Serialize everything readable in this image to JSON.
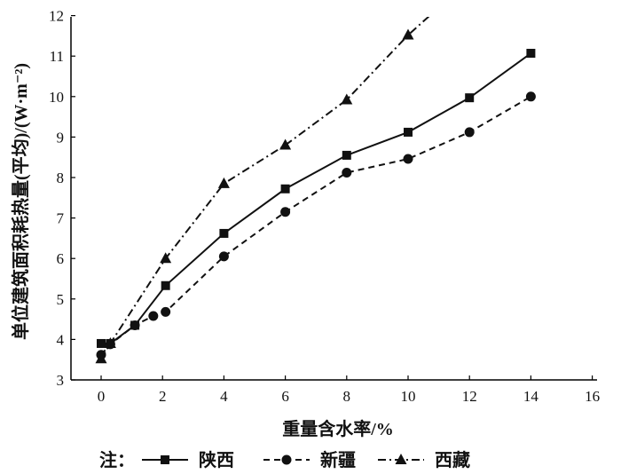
{
  "chart_data": {
    "type": "line",
    "title": "",
    "xlabel": "重量含水率/%",
    "ylabel": "单位建筑面积耗热量(平均)/(W·m⁻²)",
    "xlim": [
      -1,
      16
    ],
    "ylim": [
      3,
      12
    ],
    "xticks": [
      0,
      2,
      4,
      6,
      8,
      10,
      12,
      14,
      16
    ],
    "yticks": [
      3,
      4,
      5,
      6,
      7,
      8,
      9,
      10,
      11,
      12
    ],
    "grid": false,
    "legend_position": "bottom",
    "legend_prefix": "注：",
    "series": [
      {
        "name": "陕西",
        "marker": "square",
        "linestyle": "solid",
        "points": [
          [
            0,
            3.9
          ],
          [
            0.3,
            3.9
          ],
          [
            1.1,
            4.35
          ],
          [
            2.1,
            5.33
          ],
          [
            4,
            6.62
          ],
          [
            6,
            7.72
          ],
          [
            8,
            8.55
          ],
          [
            10,
            9.12
          ],
          [
            12,
            9.97
          ],
          [
            14,
            11.07
          ]
        ]
      },
      {
        "name": "新疆",
        "marker": "circle",
        "linestyle": "dashed",
        "points": [
          [
            0,
            3.62
          ],
          [
            0.3,
            3.88
          ],
          [
            1.1,
            4.35
          ],
          [
            1.7,
            4.58
          ],
          [
            2.1,
            4.68
          ],
          [
            4,
            6.05
          ],
          [
            6,
            7.15
          ],
          [
            8,
            8.12
          ],
          [
            10,
            8.46
          ],
          [
            12,
            9.12
          ],
          [
            14,
            10
          ]
        ]
      },
      {
        "name": "西藏",
        "marker": "triangle",
        "linestyle": "dashdot",
        "points": [
          [
            0,
            3.52
          ],
          [
            0.3,
            3.9
          ],
          [
            2.1,
            6.0
          ],
          [
            4,
            7.85
          ],
          [
            6,
            8.8
          ],
          [
            8,
            9.92
          ],
          [
            10,
            11.52
          ],
          [
            11,
            12.2
          ]
        ]
      }
    ]
  }
}
